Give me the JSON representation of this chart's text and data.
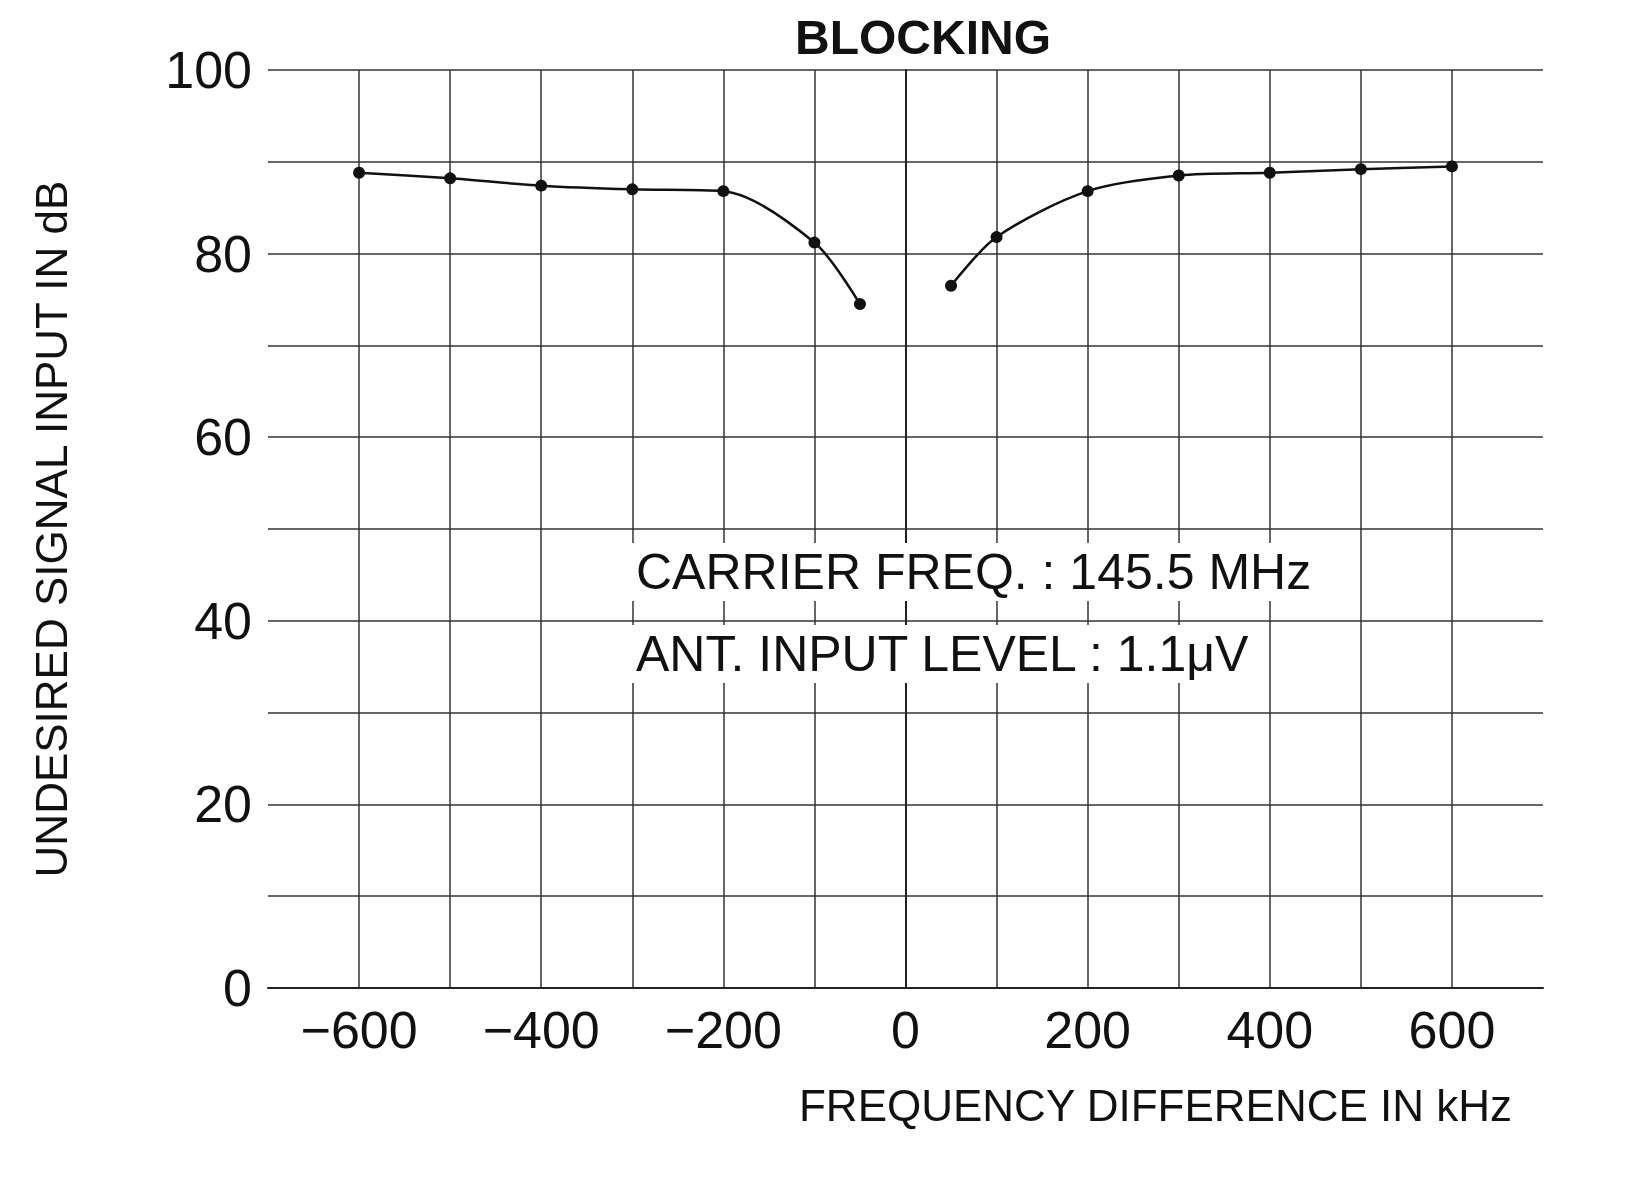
{
  "chart_data": {
    "type": "line",
    "title": "BLOCKING",
    "xlabel": "FREQUENCY DIFFERENCE IN kHz",
    "ylabel": "UNDESIRED SIGNAL INPUT IN dB",
    "x": [
      -600,
      -500,
      -400,
      -300,
      -200,
      -100,
      -50,
      0,
      50,
      100,
      200,
      300,
      400,
      500,
      600
    ],
    "values": [
      88.8,
      88.2,
      87.4,
      87,
      86.8,
      81.2,
      74.5,
      null,
      76.5,
      81.8,
      86.8,
      88.5,
      88.8,
      89.2,
      89.5
    ],
    "color": "#111111",
    "marker": "circle",
    "grid": true,
    "xlim": [
      -700,
      700
    ],
    "xticks": [
      -600,
      {
        "value": -500,
        "label": null
      },
      -400,
      {
        "value": -300,
        "label": null
      },
      -200,
      {
        "value": -100,
        "label": null
      },
      0,
      {
        "value": 100,
        "label": null
      },
      200,
      {
        "value": 300,
        "label": null
      },
      400,
      {
        "value": 500,
        "label": null
      },
      600
    ],
    "ylim": [
      0,
      100
    ],
    "yticks": [
      0,
      {
        "value": 10,
        "label": null
      },
      20,
      {
        "value": 30,
        "label": null
      },
      40,
      {
        "value": 50,
        "label": null
      },
      60,
      {
        "value": 70,
        "label": null
      },
      80,
      {
        "value": 90,
        "label": null
      },
      100
    ],
    "annotations": [
      "CARRIER FREQ. : 145.5 MHz",
      "ANT. INPUT LEVEL : 1.1μV"
    ]
  }
}
